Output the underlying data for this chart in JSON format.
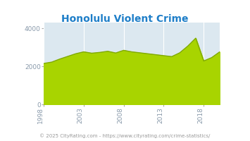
{
  "title": "Honolulu Violent Crime",
  "title_color": "#1e7ec8",
  "footer": "© 2025 CityRating.com - https://www.cityrating.com/crime-statistics/",
  "footer_color": "#999999",
  "years": [
    1998,
    1999,
    2000,
    2001,
    2002,
    2003,
    2004,
    2005,
    2006,
    2007,
    2008,
    2009,
    2010,
    2011,
    2012,
    2013,
    2014,
    2015,
    2016,
    2017,
    2018,
    2019,
    2020
  ],
  "values": [
    2150,
    2220,
    2380,
    2520,
    2660,
    2760,
    2690,
    2730,
    2790,
    2700,
    2840,
    2760,
    2710,
    2660,
    2610,
    2560,
    2510,
    2710,
    3060,
    3480,
    2280,
    2460,
    2760
  ],
  "fill_color": "#a8d400",
  "line_color": "#80aa00",
  "plot_bg": "#dce8f0",
  "outer_bg": "#ffffff",
  "ylim": [
    0,
    4300
  ],
  "yticks": [
    0,
    2000,
    4000
  ],
  "xtick_labels": [
    "1998",
    "2003",
    "2008",
    "2013",
    "2018"
  ],
  "xtick_positions": [
    1998,
    2003,
    2008,
    2013,
    2018
  ],
  "left_panel_color": "#b8c8d0",
  "right_panel_color": "#b0c0cc",
  "bottom_panel_color": "#b8c8d0",
  "grid_color": "#ffffff",
  "ytick_color": "#8899aa",
  "xtick_color": "#8899aa"
}
